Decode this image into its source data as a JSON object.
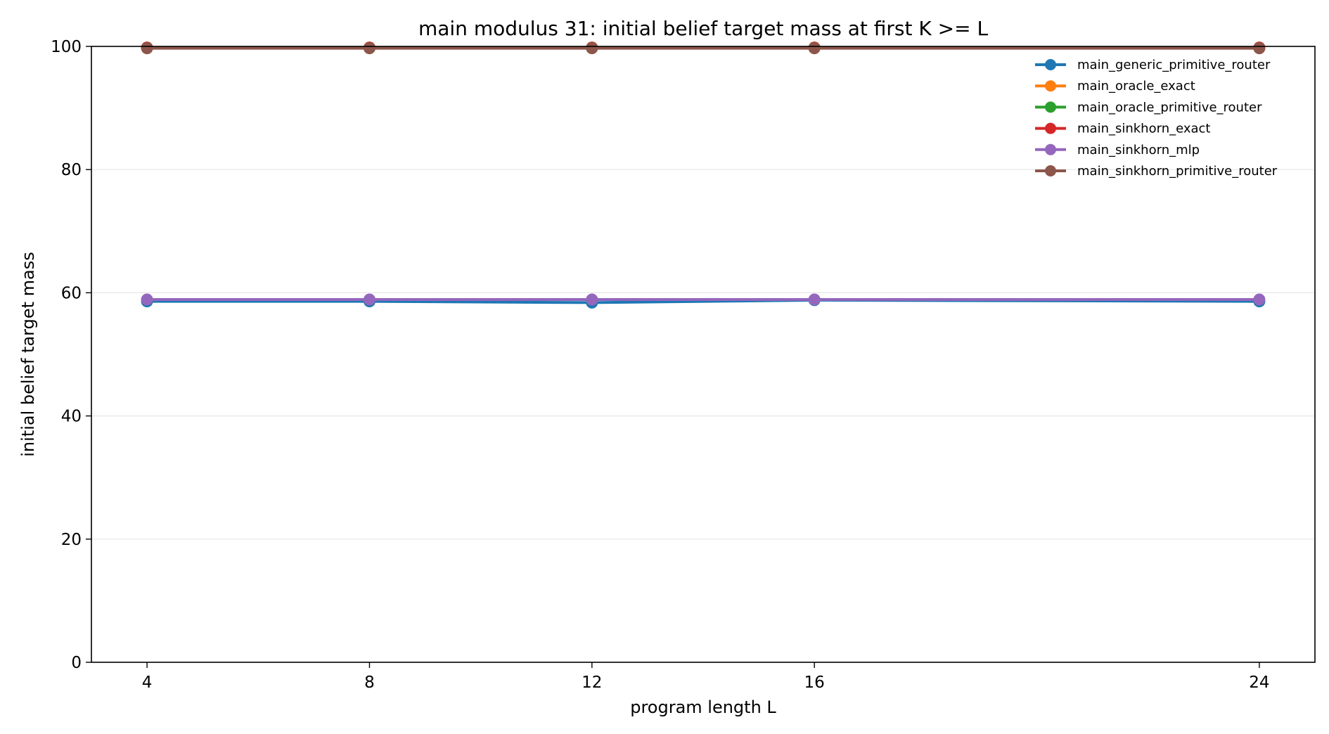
{
  "chart_data": {
    "type": "line",
    "title": "main modulus 31: initial belief target mass at first K >= L",
    "xlabel": "program length L",
    "ylabel": "initial belief target mass",
    "x": [
      4,
      8,
      12,
      16,
      24
    ],
    "xticks": [
      "4",
      "8",
      "12",
      "16",
      "24"
    ],
    "yticks": [
      "0",
      "20",
      "40",
      "60",
      "80",
      "100"
    ],
    "xlim": [
      3,
      25
    ],
    "ylim": [
      0,
      100
    ],
    "grid": "horizontal",
    "legend_position": "top-right",
    "series": [
      {
        "name": "main_generic_primitive_router",
        "color": "#1f77b4",
        "values": [
          58.6,
          58.6,
          58.4,
          58.8,
          58.6
        ]
      },
      {
        "name": "main_oracle_exact",
        "color": "#ff7f0e",
        "values": [
          99.8,
          99.8,
          99.8,
          99.8,
          99.8
        ]
      },
      {
        "name": "main_oracle_primitive_router",
        "color": "#2ca02c",
        "values": [
          99.8,
          99.8,
          99.8,
          99.8,
          99.8
        ]
      },
      {
        "name": "main_sinkhorn_exact",
        "color": "#d62728",
        "values": [
          99.8,
          99.8,
          99.8,
          99.8,
          99.8
        ]
      },
      {
        "name": "main_sinkhorn_mlp",
        "color": "#9467bd",
        "values": [
          58.9,
          58.9,
          58.9,
          58.9,
          58.9
        ]
      },
      {
        "name": "main_sinkhorn_primitive_router",
        "color": "#8c564b",
        "values": [
          99.7,
          99.7,
          99.7,
          99.7,
          99.7
        ]
      }
    ]
  }
}
